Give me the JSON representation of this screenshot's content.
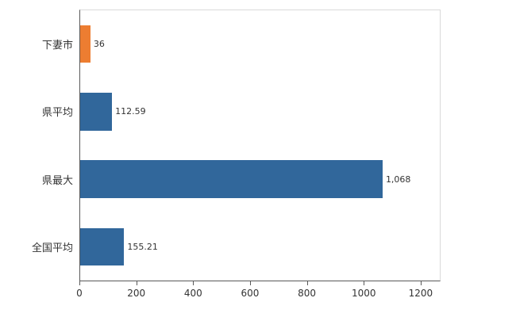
{
  "chart_data": {
    "type": "bar",
    "orientation": "horizontal",
    "title": "",
    "xlabel": "",
    "ylabel": "",
    "categories": [
      "下妻市",
      "県平均",
      "県最大",
      "全国平均"
    ],
    "values": [
      36,
      112.59,
      1068,
      155.21
    ],
    "value_labels": [
      "36",
      "112.59",
      "1,068",
      "155.21"
    ],
    "bar_colors": [
      "#ed7d31",
      "#31679b",
      "#31679b",
      "#31679b"
    ],
    "x_ticks": [
      "0",
      "200",
      "400",
      "600",
      "800",
      "1000",
      "1200"
    ],
    "x_tick_values": [
      0,
      200,
      400,
      600,
      800,
      1000,
      1200
    ],
    "xlim": [
      0,
      1270
    ],
    "grid": false,
    "legend": "none"
  },
  "colors": {
    "axis": "#595959",
    "plot_border": "#d9d9d9",
    "text": "#333333",
    "background": "#ffffff",
    "highlight_bar": "#ed7d31",
    "default_bar": "#31679b"
  }
}
